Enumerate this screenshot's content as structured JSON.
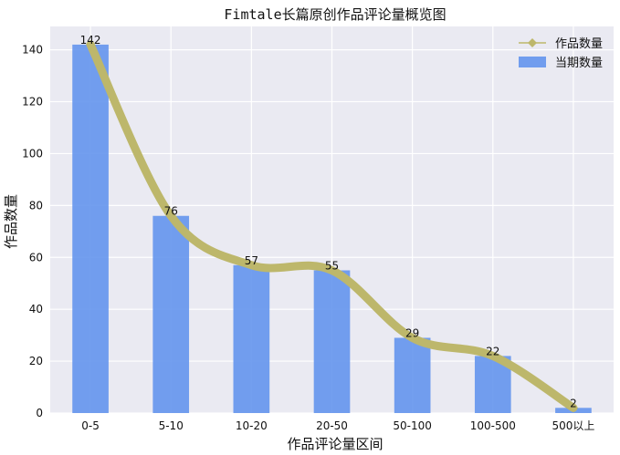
{
  "chart_data": {
    "type": "bar",
    "title": "Fimtale长篇原创作品评论量概览图",
    "xlabel": "作品评论量区间",
    "ylabel": "作品数量",
    "categories": [
      "0-5",
      "5-10",
      "10-20",
      "20-50",
      "50-100",
      "100-500",
      "500以上"
    ],
    "series": [
      {
        "name": "当期数量",
        "type": "bar",
        "color": "#6495ED",
        "values": [
          142,
          76,
          57,
          55,
          29,
          22,
          2
        ]
      },
      {
        "name": "作品数量",
        "type": "line",
        "marker": "diamond",
        "smooth": true,
        "color": "#BDB76B",
        "values": [
          142,
          76,
          57,
          55,
          29,
          22,
          2
        ]
      }
    ],
    "data_labels": [
      "142",
      "76",
      "57",
      "55",
      "29",
      "22",
      "2"
    ],
    "ylim": [
      0,
      149
    ],
    "yticks": [
      0,
      20,
      40,
      60,
      80,
      100,
      120,
      140
    ],
    "grid": true,
    "legend_position": "top-right",
    "background": "#EAEAF2"
  }
}
